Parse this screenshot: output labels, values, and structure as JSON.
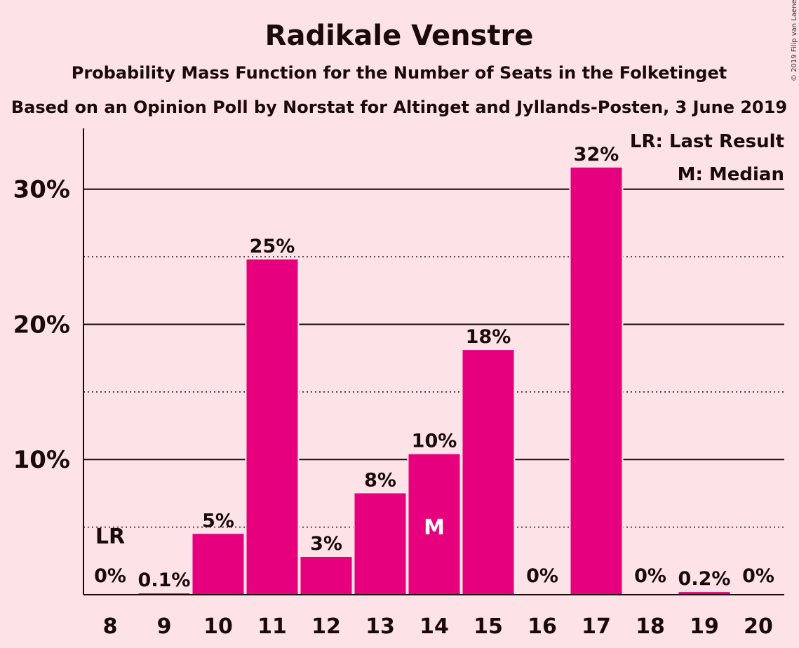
{
  "chart_data": {
    "type": "bar",
    "title": "Radikale Venstre",
    "subtitle": "Probability Mass Function for the Number of Seats in the Folketinget",
    "subtitle2": "Based on an Opinion Poll by Norstat for Altinget and Jyllands-Posten, 3 June 2019",
    "categories": [
      "8",
      "9",
      "10",
      "11",
      "12",
      "13",
      "14",
      "15",
      "16",
      "17",
      "18",
      "19",
      "20"
    ],
    "values": [
      0,
      0.1,
      4.5,
      24.8,
      2.8,
      7.5,
      10.4,
      18.1,
      0,
      31.6,
      0,
      0.2,
      0
    ],
    "value_labels": [
      "0%",
      "0.1%",
      "5%",
      "25%",
      "3%",
      "8%",
      "10%",
      "18%",
      "0%",
      "32%",
      "0%",
      "0.2%",
      "0%"
    ],
    "ylim": [
      0,
      34.5
    ],
    "y_ticks": [
      {
        "value": 10,
        "label": "10%"
      },
      {
        "value": 20,
        "label": "20%"
      },
      {
        "value": 30,
        "label": "30%"
      }
    ],
    "minor_gridlines": [
      5,
      15,
      25
    ],
    "last_result_category": "8",
    "last_result_marker": "LR",
    "median_category": "14",
    "median_marker": "M",
    "legend": {
      "lr": "LR: Last Result",
      "m": "M: Median",
      "position": "top-right"
    },
    "bar_color": "#E6007E",
    "background_color": "#FDE3E7"
  },
  "copyright": "© 2019 Filip van Laenen"
}
